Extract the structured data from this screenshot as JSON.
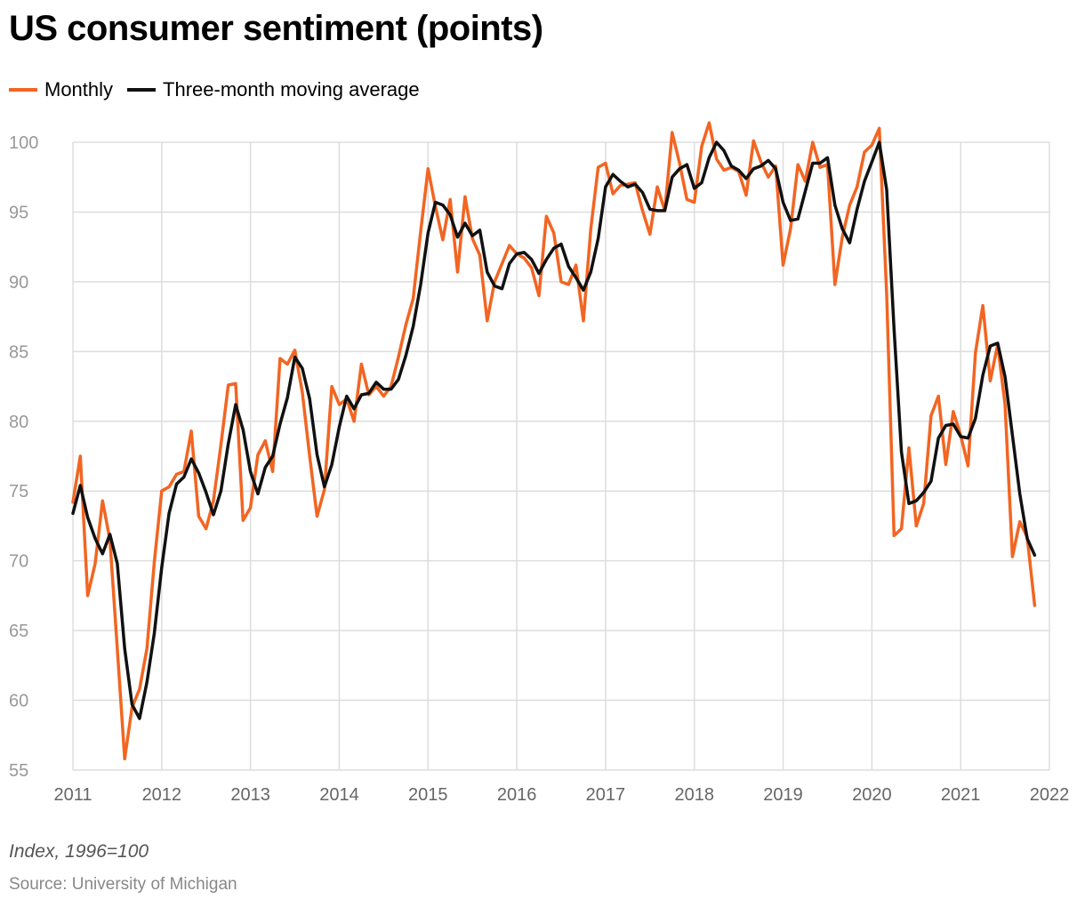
{
  "chart_data": {
    "type": "line",
    "title": "US consumer sentiment (points)",
    "xlabel": "",
    "ylabel": "",
    "ylim": [
      55,
      100
    ],
    "xlim": [
      2011,
      2022
    ],
    "yticks": [
      "55",
      "60",
      "65",
      "70",
      "75",
      "80",
      "85",
      "90",
      "95",
      "100"
    ],
    "xticks": [
      "2011",
      "2012",
      "2013",
      "2014",
      "2015",
      "2016",
      "2017",
      "2018",
      "2019",
      "2020",
      "2021",
      "2022"
    ],
    "grid": true,
    "legend_position": "top-left",
    "x_start": "2011-01",
    "x_frequency": "monthly",
    "series": [
      {
        "name": "Monthly",
        "color": "#f26522",
        "values": [
          74.2,
          77.5,
          67.5,
          69.8,
          74.3,
          71.5,
          63.7,
          55.8,
          59.5,
          60.8,
          63.7,
          69.9,
          75.0,
          75.3,
          76.2,
          76.4,
          79.3,
          73.2,
          72.3,
          74.3,
          78.3,
          82.6,
          82.7,
          72.9,
          73.8,
          77.6,
          78.6,
          76.4,
          84.5,
          84.1,
          85.1,
          82.1,
          77.5,
          73.2,
          75.1,
          82.5,
          81.2,
          81.6,
          80.0,
          84.1,
          81.9,
          82.5,
          81.8,
          82.5,
          84.6,
          86.9,
          88.8,
          93.6,
          98.1,
          95.4,
          93.0,
          95.9,
          90.7,
          96.1,
          93.1,
          91.9,
          87.2,
          90.0,
          91.3,
          92.6,
          92.0,
          91.7,
          91.0,
          89.0,
          94.7,
          93.5,
          90.0,
          89.8,
          91.2,
          87.2,
          93.8,
          98.2,
          98.5,
          96.3,
          96.9,
          97.0,
          97.1,
          95.1,
          93.4,
          96.8,
          95.1,
          100.7,
          98.5,
          95.9,
          95.7,
          99.7,
          101.4,
          98.8,
          98.0,
          98.2,
          97.9,
          96.2,
          100.1,
          98.6,
          97.5,
          98.3,
          91.2,
          93.8,
          98.4,
          97.2,
          100.0,
          98.2,
          98.4,
          89.8,
          93.2,
          95.5,
          96.8,
          99.3,
          99.8,
          101.0,
          89.1,
          71.8,
          72.3,
          78.1,
          72.5,
          74.1,
          80.4,
          81.8,
          76.9,
          80.7,
          79.0,
          76.8,
          84.9,
          88.3,
          82.9,
          85.5,
          81.2,
          70.3,
          72.8,
          71.7,
          66.8
        ]
      },
      {
        "name": "Three-month moving average",
        "color": "#111111",
        "values": [
          73.4,
          75.4,
          73.1,
          71.6,
          70.5,
          71.9,
          69.8,
          63.7,
          59.7,
          58.7,
          61.3,
          64.8,
          69.5,
          73.4,
          75.5,
          76.0,
          77.3,
          76.3,
          74.9,
          73.3,
          75.0,
          78.4,
          81.2,
          79.4,
          76.4,
          74.8,
          76.7,
          77.5,
          79.8,
          81.7,
          84.6,
          83.8,
          81.6,
          77.6,
          75.3,
          76.9,
          79.6,
          81.8,
          80.9,
          81.9,
          82.0,
          82.8,
          82.3,
          82.3,
          83.0,
          84.7,
          86.8,
          89.8,
          93.5,
          95.7,
          95.5,
          94.8,
          93.2,
          94.2,
          93.3,
          93.7,
          90.7,
          89.7,
          89.5,
          91.3,
          92.0,
          92.1,
          91.6,
          90.6,
          91.6,
          92.4,
          92.7,
          91.1,
          90.3,
          89.4,
          90.7,
          93.1,
          96.8,
          97.7,
          97.2,
          96.8,
          97.0,
          96.4,
          95.2,
          95.1,
          95.1,
          97.5,
          98.1,
          98.4,
          96.7,
          97.1,
          98.9,
          100.0,
          99.4,
          98.3,
          98.0,
          97.4,
          98.1,
          98.3,
          98.7,
          98.1,
          95.7,
          94.4,
          94.5,
          96.5,
          98.5,
          98.5,
          98.9,
          95.5,
          93.8,
          92.8,
          95.2,
          97.2,
          98.6,
          100.0,
          96.6,
          86.6,
          77.8,
          74.1,
          74.3,
          74.9,
          75.7,
          78.8,
          79.7,
          79.8,
          78.9,
          78.8,
          80.2,
          83.3,
          85.4,
          85.6,
          83.2,
          79.0,
          74.8,
          71.6,
          70.4
        ]
      }
    ]
  },
  "footer": {
    "note": "Index, 1996=100",
    "source": "Source: University of Michigan"
  }
}
